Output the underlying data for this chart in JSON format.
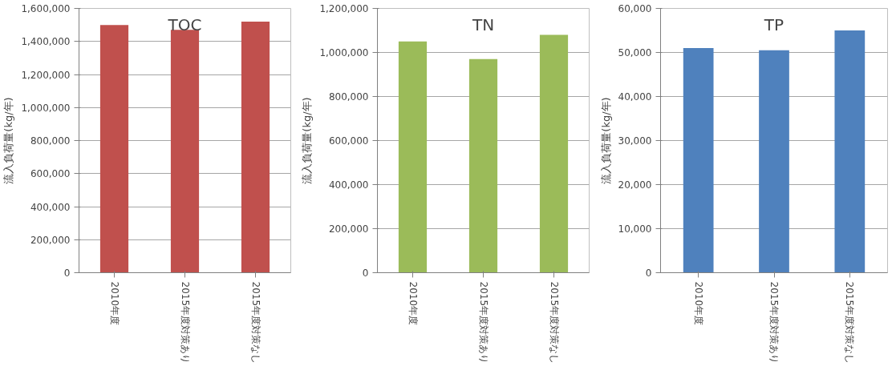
{
  "chart_data": [
    {
      "type": "bar",
      "title": "TOC",
      "ylabel": "流入負荷量(kg/年)",
      "categories": [
        "2010年度",
        "2015年度対策あり",
        "2015年度対策なし"
      ],
      "values": [
        1500000,
        1470000,
        1520000
      ],
      "color": "#c0504d",
      "ylim": [
        0,
        1600000
      ],
      "yticks": [
        {
          "value": 0,
          "label": "0"
        },
        {
          "value": 200000,
          "label": "200,000"
        },
        {
          "value": 400000,
          "label": "400,000"
        },
        {
          "value": 600000,
          "label": "600,000"
        },
        {
          "value": 800000,
          "label": "800,000"
        },
        {
          "value": 1000000,
          "label": "1,000,000"
        },
        {
          "value": 1200000,
          "label": "1,200,000"
        },
        {
          "value": 1400000,
          "label": "1,400,000"
        },
        {
          "value": 1600000,
          "label": "1,600,000"
        }
      ],
      "grid": "y"
    },
    {
      "type": "bar",
      "title": "TN",
      "ylabel": "流入負荷量(kg/年)",
      "categories": [
        "2010年度",
        "2015年度対策あり",
        "2015年度対策なし"
      ],
      "values": [
        1050000,
        970000,
        1080000
      ],
      "color": "#9bbb59",
      "ylim": [
        0,
        1200000
      ],
      "yticks": [
        {
          "value": 0,
          "label": "0"
        },
        {
          "value": 200000,
          "label": "200,000"
        },
        {
          "value": 400000,
          "label": "400,000"
        },
        {
          "value": 600000,
          "label": "600,000"
        },
        {
          "value": 800000,
          "label": "800,000"
        },
        {
          "value": 1000000,
          "label": "1,000,000"
        },
        {
          "value": 1200000,
          "label": "1,200,000"
        }
      ],
      "grid": "y"
    },
    {
      "type": "bar",
      "title": "TP",
      "ylabel": "流入負荷量(kg/年)",
      "categories": [
        "2010年度",
        "2015年度対策あり",
        "2015年度対策なし"
      ],
      "values": [
        51000,
        50500,
        55000
      ],
      "color": "#4f81bd",
      "ylim": [
        0,
        60000
      ],
      "yticks": [
        {
          "value": 0,
          "label": "0"
        },
        {
          "value": 10000,
          "label": "10,000"
        },
        {
          "value": 20000,
          "label": "20,000"
        },
        {
          "value": 30000,
          "label": "30,000"
        },
        {
          "value": 40000,
          "label": "40,000"
        },
        {
          "value": 50000,
          "label": "50,000"
        },
        {
          "value": 60000,
          "label": "60,000"
        }
      ],
      "grid": "y"
    }
  ]
}
